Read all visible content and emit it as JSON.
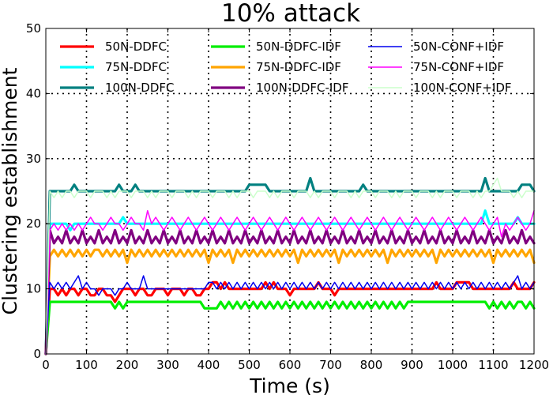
{
  "chart_data": {
    "type": "line",
    "title": "10% attack",
    "xlabel": "Time (s)",
    "ylabel": "Clustering establishment",
    "xlim": [
      0,
      1200
    ],
    "ylim": [
      0,
      50
    ],
    "xticks": [
      0,
      100,
      200,
      300,
      400,
      500,
      600,
      700,
      800,
      900,
      1000,
      1100,
      1200
    ],
    "yticks": [
      0,
      10,
      20,
      30,
      40,
      50
    ],
    "grid": true,
    "legend_position": "top",
    "x": [
      0,
      10,
      20,
      30,
      40,
      50,
      60,
      70,
      80,
      90,
      100,
      110,
      120,
      130,
      140,
      150,
      160,
      170,
      180,
      190,
      200,
      210,
      220,
      230,
      240,
      250,
      260,
      270,
      280,
      290,
      300,
      310,
      320,
      330,
      340,
      350,
      360,
      370,
      380,
      390,
      400,
      410,
      420,
      430,
      440,
      450,
      460,
      470,
      480,
      490,
      500,
      510,
      520,
      530,
      540,
      550,
      560,
      570,
      580,
      590,
      600,
      610,
      620,
      630,
      640,
      650,
      660,
      670,
      680,
      690,
      700,
      710,
      720,
      730,
      740,
      750,
      760,
      770,
      780,
      790,
      800,
      810,
      820,
      830,
      840,
      850,
      860,
      870,
      880,
      890,
      900,
      910,
      920,
      930,
      940,
      950,
      960,
      970,
      980,
      990,
      1000,
      1010,
      1020,
      1030,
      1040,
      1050,
      1060,
      1070,
      1080,
      1090,
      1100,
      1110,
      1120,
      1130,
      1140,
      1150,
      1160,
      1170,
      1180,
      1190,
      1200
    ],
    "series": [
      {
        "name": "50N-DDFC",
        "color": "#ff0000",
        "width": 3.2,
        "values": [
          0,
          10,
          10,
          9,
          10,
          9,
          10,
          10,
          9,
          10,
          10,
          9,
          9,
          10,
          10,
          9,
          9,
          8,
          9,
          10,
          10,
          10,
          9,
          10,
          10,
          9,
          9,
          10,
          10,
          10,
          9,
          10,
          10,
          10,
          9,
          10,
          10,
          9,
          9,
          10,
          10,
          11,
          11,
          10,
          11,
          10,
          10,
          10,
          10,
          10,
          10,
          10,
          10,
          10,
          11,
          10,
          11,
          10,
          10,
          10,
          9,
          10,
          10,
          10,
          10,
          10,
          10,
          11,
          10,
          10,
          10,
          9,
          10,
          10,
          10,
          10,
          10,
          10,
          10,
          10,
          10,
          10,
          10,
          10,
          10,
          10,
          10,
          10,
          10,
          10,
          10,
          10,
          10,
          10,
          10,
          10,
          11,
          10,
          10,
          10,
          10,
          11,
          11,
          11,
          11,
          10,
          10,
          10,
          10,
          10,
          10,
          10,
          10,
          10,
          10,
          11,
          10,
          10,
          10,
          10,
          11
        ]
      },
      {
        "name": "75N-DDFC",
        "color": "#00ffff",
        "width": 3.2,
        "values": [
          0,
          20,
          20,
          20,
          20,
          20,
          19,
          20,
          20,
          20,
          20,
          20,
          20,
          20,
          20,
          20,
          20,
          20,
          20,
          21,
          20,
          20,
          20,
          20,
          20,
          20,
          20,
          20,
          20,
          20,
          20,
          20,
          20,
          20,
          20,
          20,
          20,
          20,
          20,
          20,
          20,
          20,
          20,
          20,
          20,
          20,
          20,
          20,
          20,
          20,
          20,
          20,
          20,
          20,
          20,
          20,
          20,
          20,
          20,
          20,
          20,
          20,
          20,
          20,
          20,
          20,
          20,
          20,
          20,
          20,
          20,
          20,
          20,
          20,
          20,
          20,
          20,
          20,
          20,
          20,
          20,
          20,
          20,
          20,
          20,
          20,
          20,
          20,
          20,
          20,
          20,
          20,
          20,
          20,
          20,
          20,
          20,
          20,
          20,
          20,
          20,
          20,
          20,
          20,
          20,
          20,
          20,
          20,
          22,
          20,
          20,
          20,
          20,
          20,
          20,
          20,
          21,
          20,
          20,
          20,
          20
        ]
      },
      {
        "name": "100N-DDFC",
        "color": "#008080",
        "width": 3.2,
        "values": [
          0,
          25,
          25,
          25,
          25,
          25,
          25,
          26,
          25,
          25,
          25,
          25,
          25,
          25,
          25,
          25,
          25,
          25,
          26,
          25,
          25,
          25,
          26,
          25,
          25,
          25,
          25,
          25,
          25,
          25,
          25,
          25,
          25,
          25,
          25,
          25,
          25,
          25,
          25,
          25,
          25,
          25,
          25,
          25,
          25,
          25,
          25,
          25,
          25,
          25,
          26,
          26,
          26,
          26,
          26,
          25,
          25,
          25,
          25,
          25,
          25,
          25,
          25,
          25,
          25,
          27,
          25,
          25,
          25,
          25,
          25,
          25,
          25,
          25,
          25,
          25,
          25,
          25,
          26,
          25,
          25,
          25,
          25,
          25,
          25,
          25,
          25,
          25,
          25,
          25,
          25,
          25,
          25,
          25,
          25,
          25,
          25,
          25,
          25,
          25,
          25,
          25,
          25,
          25,
          25,
          25,
          25,
          25,
          27,
          25,
          25,
          25,
          25,
          25,
          25,
          25,
          25,
          26,
          26,
          26,
          25
        ]
      },
      {
        "name": "50N-DDFC-IDF",
        "color": "#00ee00",
        "width": 3.2,
        "values": [
          0,
          8,
          8,
          8,
          8,
          8,
          8,
          8,
          8,
          8,
          8,
          8,
          8,
          8,
          8,
          8,
          8,
          7,
          8,
          7,
          8,
          8,
          8,
          8,
          8,
          8,
          8,
          8,
          8,
          8,
          8,
          8,
          8,
          8,
          8,
          8,
          8,
          8,
          8,
          7,
          7,
          7,
          7,
          8,
          7,
          8,
          7,
          8,
          7,
          8,
          7,
          8,
          7,
          8,
          7,
          8,
          7,
          8,
          7,
          8,
          7,
          8,
          7,
          8,
          7,
          8,
          7,
          8,
          7,
          8,
          7,
          8,
          7,
          8,
          7,
          8,
          7,
          8,
          7,
          8,
          7,
          8,
          7,
          8,
          7,
          8,
          7,
          8,
          7,
          8,
          8,
          8,
          8,
          8,
          8,
          8,
          8,
          8,
          8,
          8,
          8,
          8,
          8,
          8,
          8,
          8,
          8,
          8,
          8,
          7,
          8,
          7,
          8,
          7,
          8,
          7,
          8,
          8,
          7,
          8,
          7
        ]
      },
      {
        "name": "75N-DDFC-IDF",
        "color": "#ffa500",
        "width": 3.2,
        "values": [
          0,
          15,
          16,
          15,
          16,
          15,
          16,
          15,
          16,
          15,
          16,
          15,
          16,
          16,
          15,
          16,
          15,
          16,
          15,
          16,
          14,
          16,
          15,
          16,
          15,
          16,
          15,
          16,
          15,
          16,
          15,
          16,
          15,
          16,
          15,
          16,
          15,
          16,
          15,
          16,
          14,
          16,
          15,
          16,
          15,
          16,
          14,
          16,
          15,
          16,
          15,
          16,
          15,
          16,
          15,
          16,
          15,
          16,
          15,
          16,
          15,
          16,
          14,
          16,
          15,
          16,
          15,
          16,
          15,
          16,
          15,
          16,
          14,
          16,
          15,
          16,
          15,
          16,
          15,
          16,
          15,
          16,
          15,
          16,
          14,
          16,
          15,
          16,
          15,
          16,
          15,
          16,
          15,
          16,
          15,
          16,
          14,
          16,
          15,
          16,
          15,
          16,
          15,
          16,
          15,
          16,
          15,
          16,
          15,
          16,
          14,
          16,
          15,
          16,
          15,
          16,
          15,
          16,
          15,
          16,
          14
        ]
      },
      {
        "name": "100N-DDFC-IDF",
        "color": "#800080",
        "width": 3.2,
        "values": [
          0,
          19,
          17,
          18,
          17,
          19,
          17,
          18,
          17,
          19,
          17,
          18,
          17,
          19,
          17,
          18,
          17,
          19,
          17,
          18,
          17,
          19,
          17,
          18,
          17,
          19,
          17,
          18,
          17,
          19,
          17,
          18,
          17,
          19,
          17,
          18,
          17,
          19,
          17,
          18,
          17,
          19,
          17,
          18,
          17,
          19,
          17,
          18,
          17,
          19,
          17,
          18,
          17,
          19,
          17,
          18,
          17,
          19,
          17,
          18,
          17,
          19,
          17,
          18,
          17,
          19,
          17,
          18,
          17,
          19,
          17,
          18,
          17,
          19,
          17,
          18,
          17,
          19,
          17,
          18,
          17,
          19,
          17,
          18,
          17,
          19,
          17,
          18,
          17,
          19,
          17,
          18,
          17,
          19,
          17,
          18,
          17,
          19,
          17,
          18,
          17,
          19,
          17,
          18,
          17,
          19,
          17,
          18,
          17,
          19,
          17,
          18,
          17,
          19,
          17,
          18,
          17,
          19,
          17,
          18,
          17
        ]
      },
      {
        "name": "50N-CONF+IDF",
        "color": "#0000ee",
        "width": 1.5,
        "values": [
          0,
          11,
          10,
          11,
          10,
          11,
          10,
          11,
          12,
          10,
          11,
          10,
          10,
          9,
          10,
          10,
          10,
          9,
          10,
          10,
          11,
          10,
          10,
          10,
          12,
          10,
          10,
          10,
          10,
          10,
          10,
          10,
          10,
          10,
          10,
          10,
          10,
          10,
          10,
          10,
          11,
          11,
          10,
          11,
          10,
          11,
          10,
          11,
          10,
          11,
          10,
          11,
          10,
          11,
          10,
          11,
          10,
          11,
          10,
          11,
          10,
          11,
          10,
          11,
          10,
          11,
          10,
          11,
          10,
          11,
          10,
          11,
          10,
          11,
          10,
          11,
          10,
          11,
          10,
          11,
          10,
          11,
          10,
          11,
          10,
          11,
          10,
          11,
          10,
          11,
          10,
          11,
          10,
          11,
          10,
          11,
          10,
          11,
          10,
          11,
          10,
          11,
          10,
          11,
          10,
          11,
          10,
          11,
          10,
          11,
          10,
          11,
          10,
          11,
          10,
          11,
          12,
          10,
          11,
          10,
          11
        ]
      },
      {
        "name": "75N-CONF+IDF",
        "color": "#ff00ff",
        "width": 1.5,
        "values": [
          0,
          19,
          20,
          19,
          20,
          19,
          20,
          19,
          20,
          19,
          20,
          21,
          20,
          20,
          19,
          20,
          21,
          20,
          20,
          19,
          20,
          21,
          20,
          20,
          19,
          22,
          20,
          21,
          20,
          19,
          20,
          21,
          20,
          19,
          20,
          21,
          20,
          19,
          20,
          21,
          20,
          19,
          20,
          21,
          20,
          19,
          20,
          21,
          20,
          19,
          20,
          21,
          20,
          19,
          20,
          21,
          20,
          19,
          20,
          21,
          20,
          19,
          20,
          21,
          20,
          19,
          20,
          21,
          20,
          19,
          20,
          21,
          20,
          19,
          20,
          21,
          20,
          19,
          20,
          21,
          20,
          19,
          20,
          21,
          20,
          19,
          20,
          21,
          20,
          19,
          20,
          21,
          20,
          19,
          20,
          21,
          20,
          19,
          20,
          21,
          20,
          19,
          20,
          21,
          20,
          19,
          20,
          21,
          20,
          19,
          20,
          21,
          18,
          20,
          19,
          20,
          21,
          20,
          19,
          20,
          22
        ]
      },
      {
        "name": "100N-CONF+IDF",
        "color": "#ccffcc",
        "width": 1.5,
        "values": [
          0,
          25,
          24,
          25,
          24,
          25,
          25,
          24,
          25,
          25,
          25,
          24,
          25,
          25,
          25,
          24,
          25,
          24,
          25,
          25,
          25,
          24,
          25,
          25,
          25,
          24,
          25,
          24,
          25,
          25,
          25,
          24,
          25,
          25,
          25,
          24,
          25,
          24,
          25,
          25,
          25,
          24,
          25,
          25,
          25,
          24,
          25,
          24,
          25,
          25,
          25,
          24,
          25,
          25,
          25,
          24,
          25,
          24,
          25,
          25,
          25,
          24,
          25,
          25,
          25,
          24,
          25,
          24,
          25,
          25,
          25,
          24,
          25,
          25,
          25,
          24,
          25,
          24,
          25,
          25,
          25,
          24,
          25,
          25,
          25,
          24,
          25,
          24,
          25,
          25,
          25,
          24,
          25,
          25,
          25,
          24,
          25,
          24,
          25,
          25,
          25,
          24,
          25,
          25,
          25,
          24,
          25,
          24,
          25,
          25,
          26,
          27,
          25,
          25,
          25,
          24,
          25,
          24,
          25,
          25,
          25
        ]
      }
    ]
  }
}
